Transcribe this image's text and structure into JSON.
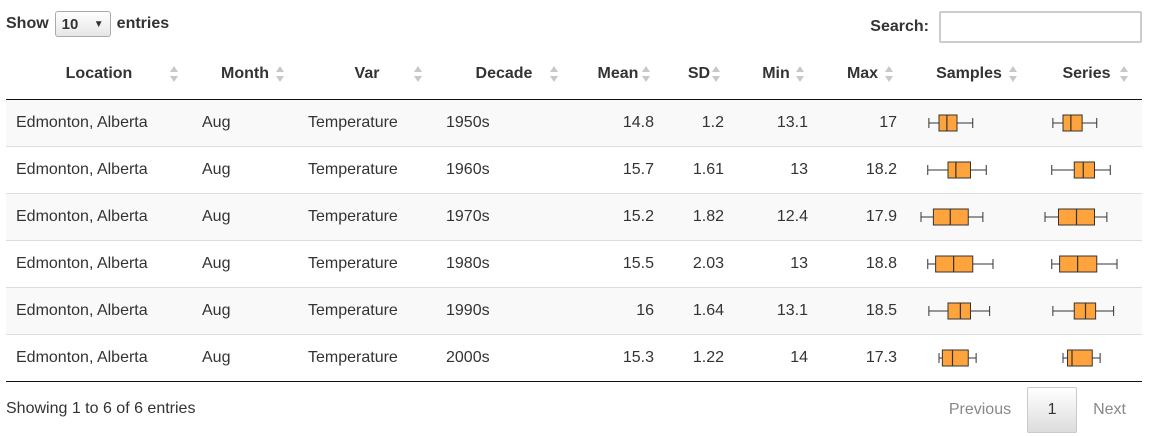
{
  "controls": {
    "show_label": "Show",
    "page_length": "10",
    "entries_label": "entries",
    "search_label": "Search:",
    "search_value": ""
  },
  "columns": [
    "Location",
    "Month",
    "Var",
    "Decade",
    "Mean",
    "SD",
    "Min",
    "Max",
    "Samples",
    "Series"
  ],
  "rows": [
    {
      "location": "Edmonton, Alberta",
      "month": "Aug",
      "var": "Temperature",
      "decade": "1950s",
      "mean": "14.8",
      "sd": "1.2",
      "min": "13.1",
      "max": "17",
      "samples_box": {
        "whisker_low": 13.1,
        "q1": 14.0,
        "median": 14.7,
        "q3": 15.6,
        "whisker_high": 17.0
      },
      "series_box": {
        "whisker_low": 13.1,
        "q1": 14.0,
        "median": 14.7,
        "q3": 15.7,
        "whisker_high": 17.0
      }
    },
    {
      "location": "Edmonton, Alberta",
      "month": "Aug",
      "var": "Temperature",
      "decade": "1960s",
      "mean": "15.7",
      "sd": "1.61",
      "min": "13",
      "max": "18.2",
      "samples_box": {
        "whisker_low": 13.0,
        "q1": 14.8,
        "median": 15.5,
        "q3": 16.8,
        "whisker_high": 18.2
      },
      "series_box": {
        "whisker_low": 13.0,
        "q1": 15.0,
        "median": 15.8,
        "q3": 16.8,
        "whisker_high": 18.2
      }
    },
    {
      "location": "Edmonton, Alberta",
      "month": "Aug",
      "var": "Temperature",
      "decade": "1970s",
      "mean": "15.2",
      "sd": "1.82",
      "min": "12.4",
      "max": "17.9",
      "samples_box": {
        "whisker_low": 12.4,
        "q1": 13.5,
        "median": 15.0,
        "q3": 16.6,
        "whisker_high": 17.9
      },
      "series_box": {
        "whisker_low": 12.4,
        "q1": 13.6,
        "median": 15.2,
        "q3": 16.8,
        "whisker_high": 17.9
      }
    },
    {
      "location": "Edmonton, Alberta",
      "month": "Aug",
      "var": "Temperature",
      "decade": "1980s",
      "mean": "15.5",
      "sd": "2.03",
      "min": "13",
      "max": "18.8",
      "samples_box": {
        "whisker_low": 13.0,
        "q1": 13.7,
        "median": 15.3,
        "q3": 17.0,
        "whisker_high": 18.8
      },
      "series_box": {
        "whisker_low": 13.0,
        "q1": 13.7,
        "median": 15.3,
        "q3": 17.0,
        "whisker_high": 18.8
      }
    },
    {
      "location": "Edmonton, Alberta",
      "month": "Aug",
      "var": "Temperature",
      "decade": "1990s",
      "mean": "16",
      "sd": "1.64",
      "min": "13.1",
      "max": "18.5",
      "samples_box": {
        "whisker_low": 13.1,
        "q1": 14.8,
        "median": 15.9,
        "q3": 16.8,
        "whisker_high": 18.5
      },
      "series_box": {
        "whisker_low": 13.1,
        "q1": 15.0,
        "median": 16.0,
        "q3": 16.9,
        "whisker_high": 18.5
      }
    },
    {
      "location": "Edmonton, Alberta",
      "month": "Aug",
      "var": "Temperature",
      "decade": "2000s",
      "mean": "15.3",
      "sd": "1.22",
      "min": "14",
      "max": "17.3",
      "samples_box": {
        "whisker_low": 14.0,
        "q1": 14.3,
        "median": 15.2,
        "q3": 16.6,
        "whisker_high": 17.3
      },
      "series_box": {
        "whisker_low": 14.0,
        "q1": 14.4,
        "median": 14.8,
        "q3": 16.6,
        "whisker_high": 17.3
      }
    }
  ],
  "boxplot_domain": [
    12.4,
    18.8
  ],
  "colors": {
    "box_fill": "#ffa43c",
    "box_stroke": "#333333"
  },
  "footer": {
    "info": "Showing 1 to 6 of 6 entries",
    "previous": "Previous",
    "current_page": "1",
    "next": "Next"
  }
}
